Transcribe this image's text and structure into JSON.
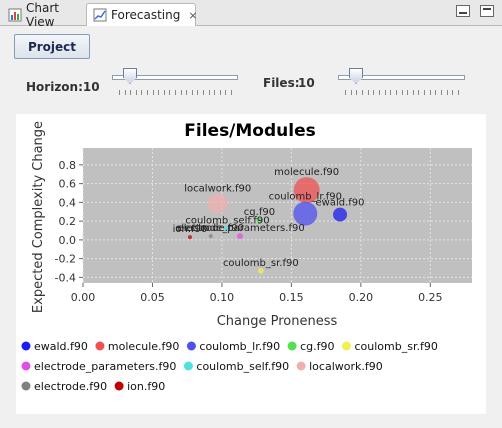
{
  "tabs": [
    {
      "label": "Chart View",
      "icon": "chart-icon",
      "active": false
    },
    {
      "label": "Forecasting",
      "icon": "forecast-icon",
      "active": true,
      "closable": true
    }
  ],
  "window_controls": {
    "minimize_icon": "minimize-icon",
    "maximize_icon": "maximize-icon"
  },
  "toolbar": {
    "project_label": "Project"
  },
  "horizon": {
    "label": "Horizon:10",
    "value": 10,
    "min": 0,
    "max": 100,
    "tick_count": 21
  },
  "files": {
    "label": "Files:",
    "value_text": "10",
    "value": 10,
    "min": 0,
    "max": 100,
    "tick_count": 21
  },
  "colors": {
    "accent": "#1a2a55"
  },
  "chart_data": {
    "type": "scatter",
    "title": "Files/Modules",
    "xlabel": "Change Proneness",
    "ylabel": "Expected Complexity Change",
    "xlim": [
      0.0,
      0.28
    ],
    "ylim": [
      -0.46,
      0.98
    ],
    "xticks": [
      "0.00",
      "0.05",
      "0.10",
      "0.15",
      "0.20",
      "0.25"
    ],
    "yticks": [
      "-0.4",
      "-0.2",
      "0.0",
      "0.2",
      "0.4",
      "0.6",
      "0.8"
    ],
    "grid": true,
    "legend_position": "bottom",
    "series": [
      {
        "name": "ewald.f90",
        "color": "#1c1cf0",
        "points": [
          {
            "x": 0.185,
            "y": 0.27,
            "size": 7,
            "label": "ewald.f90"
          }
        ]
      },
      {
        "name": "molecule.f90",
        "color": "#f05050",
        "points": [
          {
            "x": 0.161,
            "y": 0.53,
            "size": 13,
            "label": "molecule.f90"
          }
        ]
      },
      {
        "name": "coulomb_lr.f90",
        "color": "#5050f0",
        "points": [
          {
            "x": 0.16,
            "y": 0.28,
            "size": 12,
            "label": "coulomb_lr.f90"
          }
        ]
      },
      {
        "name": "cg.f90",
        "color": "#50e050",
        "points": [
          {
            "x": 0.127,
            "y": 0.21,
            "size": 3,
            "label": "cg.f90"
          }
        ]
      },
      {
        "name": "coulomb_sr.f90",
        "color": "#f0f050",
        "points": [
          {
            "x": 0.128,
            "y": -0.33,
            "size": 3,
            "label": "coulomb_sr.f90"
          }
        ]
      },
      {
        "name": "electrode_parameters.f90",
        "color": "#e050e0",
        "points": [
          {
            "x": 0.113,
            "y": 0.04,
            "size": 3,
            "label": "electrode_parameters.f90"
          }
        ]
      },
      {
        "name": "coulomb_self.f90",
        "color": "#50e0e0",
        "points": [
          {
            "x": 0.104,
            "y": 0.12,
            "size": 3,
            "label": "coulomb_self.f90"
          }
        ]
      },
      {
        "name": "localwork.f90",
        "color": "#f0b0b0",
        "points": [
          {
            "x": 0.097,
            "y": 0.39,
            "size": 10,
            "label": "localwork.f90"
          }
        ]
      },
      {
        "name": "electrode.f90",
        "color": "#808080",
        "points": [
          {
            "x": 0.092,
            "y": 0.04,
            "size": 2,
            "label": "electrode.f90"
          }
        ]
      },
      {
        "name": "ion.f90",
        "color": "#c00000",
        "points": [
          {
            "x": 0.077,
            "y": 0.03,
            "size": 2,
            "label": "ion.f90"
          }
        ]
      }
    ]
  }
}
